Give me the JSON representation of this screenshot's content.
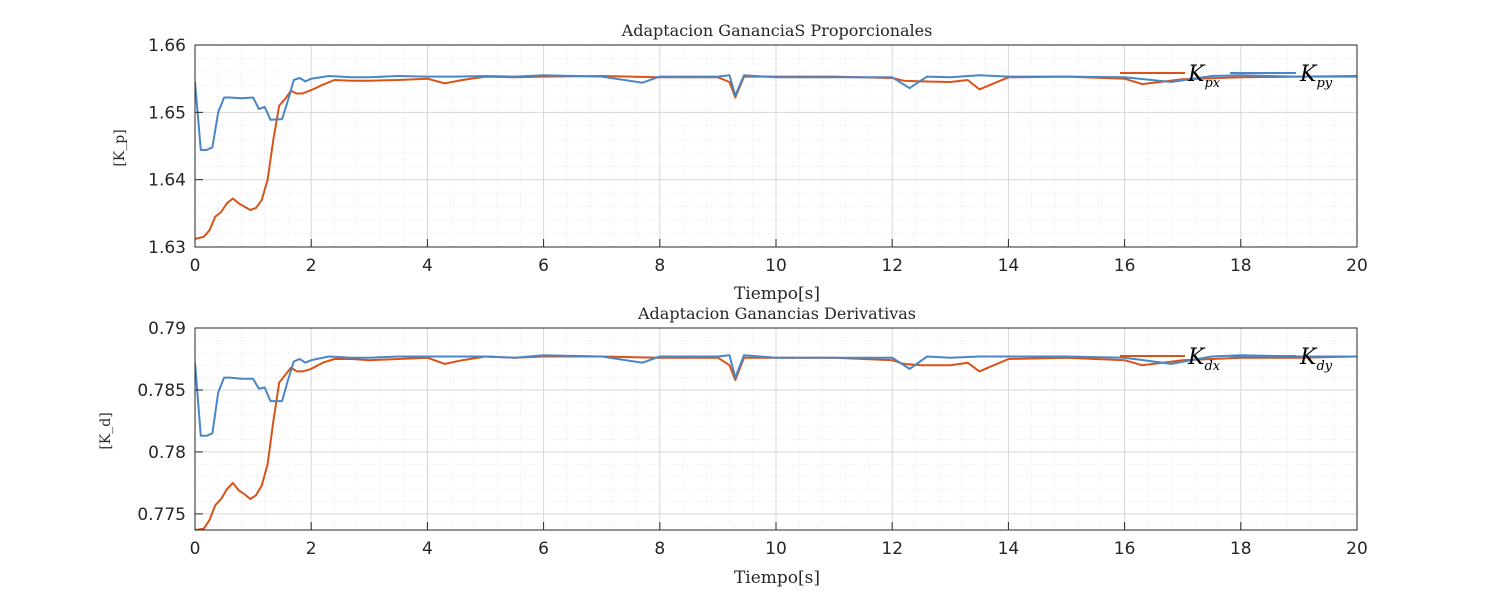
{
  "chart_data": [
    {
      "type": "line",
      "title": "Adaptacion GananciaS Proporcionales",
      "xlabel": "Tiempo[s]",
      "ylabel": "[K_p]",
      "xlim": [
        0,
        20
      ],
      "ylim": [
        1.63,
        1.66
      ],
      "xticks": [
        "0",
        "2",
        "4",
        "6",
        "8",
        "10",
        "12",
        "14",
        "16",
        "18",
        "20"
      ],
      "yticks": [
        "1.63",
        "1.64",
        "1.65",
        "1.66"
      ],
      "grid": true,
      "minor_grid": true,
      "legend_position": "top-right",
      "series": [
        {
          "name": "K_px",
          "legend_main": "K",
          "legend_sub": "px",
          "color": "#d95319",
          "x": [
            0,
            0.15,
            0.25,
            0.35,
            0.45,
            0.55,
            0.65,
            0.75,
            0.85,
            0.95,
            1.05,
            1.15,
            1.25,
            1.35,
            1.45,
            1.55,
            1.65,
            1.75,
            1.85,
            2.0,
            2.2,
            2.4,
            2.7,
            3.0,
            3.5,
            4.0,
            4.3,
            4.6,
            5.0,
            5.5,
            6.0,
            7.0,
            8.0,
            9.0,
            9.2,
            9.3,
            9.45,
            10.0,
            11.0,
            12.0,
            12.2,
            12.5,
            13.0,
            13.3,
            13.5,
            14.0,
            15.0,
            16.0,
            16.3,
            17.0,
            18.0,
            19.0,
            20.0
          ],
          "y": [
            1.6312,
            1.6315,
            1.6325,
            1.6345,
            1.6352,
            1.6365,
            1.6372,
            1.6365,
            1.636,
            1.6355,
            1.6358,
            1.637,
            1.64,
            1.646,
            1.651,
            1.652,
            1.6532,
            1.6528,
            1.6528,
            1.6533,
            1.6541,
            1.6548,
            1.6547,
            1.6547,
            1.6548,
            1.655,
            1.6543,
            1.6548,
            1.6553,
            1.6552,
            1.6553,
            1.6554,
            1.6552,
            1.6552,
            1.6545,
            1.6522,
            1.6553,
            1.6553,
            1.6553,
            1.6551,
            1.6547,
            1.6546,
            1.6545,
            1.6548,
            1.6534,
            1.6552,
            1.6553,
            1.655,
            1.6542,
            1.6549,
            1.6552,
            1.6553,
            1.6554
          ]
        },
        {
          "name": "K_py",
          "legend_main": "K",
          "legend_sub": "py",
          "color": "#4a86c5",
          "x": [
            0,
            0.1,
            0.2,
            0.3,
            0.4,
            0.5,
            0.6,
            0.8,
            1.0,
            1.1,
            1.2,
            1.3,
            1.5,
            1.6,
            1.7,
            1.8,
            1.9,
            2.0,
            2.3,
            2.7,
            3.0,
            3.5,
            4.0,
            4.5,
            5.0,
            5.5,
            6.0,
            7.0,
            7.7,
            8.0,
            9.0,
            9.2,
            9.3,
            9.45,
            10.0,
            11.0,
            12.0,
            12.3,
            12.6,
            13.0,
            13.5,
            14.0,
            15.0,
            16.0,
            16.8,
            17.5,
            18.0,
            19.0,
            20.0
          ],
          "y": [
            1.6545,
            1.6444,
            1.6444,
            1.6448,
            1.65,
            1.6522,
            1.6522,
            1.6521,
            1.6522,
            1.6505,
            1.6508,
            1.6489,
            1.649,
            1.6518,
            1.6548,
            1.6551,
            1.6546,
            1.655,
            1.6554,
            1.6552,
            1.6552,
            1.6554,
            1.6553,
            1.6553,
            1.6554,
            1.6553,
            1.6555,
            1.6553,
            1.6544,
            1.6553,
            1.6553,
            1.6555,
            1.6525,
            1.6555,
            1.6552,
            1.6552,
            1.6552,
            1.6536,
            1.6553,
            1.6552,
            1.6555,
            1.6553,
            1.6553,
            1.6552,
            1.6545,
            1.6554,
            1.6555,
            1.6553,
            1.6553
          ]
        }
      ]
    },
    {
      "type": "line",
      "title": "Adaptacion Ganancias Derivativas",
      "xlabel": "Tiempo[s]",
      "ylabel": "[K_d]",
      "xlim": [
        0,
        20
      ],
      "ylim": [
        0.7737,
        0.79
      ],
      "xticks": [
        "0",
        "2",
        "4",
        "6",
        "8",
        "10",
        "12",
        "14",
        "16",
        "18",
        "20"
      ],
      "yticks": [
        "0.775",
        "0.78",
        "0.785",
        "0.79"
      ],
      "grid": true,
      "minor_grid": true,
      "legend_position": "top-right",
      "series": [
        {
          "name": "K_dx",
          "legend_main": "K",
          "legend_sub": "dx",
          "color": "#d95319",
          "x": [
            0,
            0.15,
            0.25,
            0.35,
            0.45,
            0.55,
            0.65,
            0.75,
            0.85,
            0.95,
            1.05,
            1.15,
            1.25,
            1.35,
            1.45,
            1.55,
            1.65,
            1.75,
            1.85,
            2.0,
            2.2,
            2.4,
            2.7,
            3.0,
            3.5,
            4.0,
            4.3,
            4.6,
            5.0,
            5.5,
            6.0,
            7.0,
            8.0,
            9.0,
            9.2,
            9.3,
            9.45,
            10.0,
            11.0,
            12.0,
            12.2,
            12.5,
            13.0,
            13.3,
            13.5,
            14.0,
            15.0,
            16.0,
            16.3,
            17.0,
            18.0,
            19.0,
            20.0
          ],
          "y": [
            0.7737,
            0.7738,
            0.7745,
            0.7757,
            0.7762,
            0.777,
            0.7775,
            0.7769,
            0.7766,
            0.7762,
            0.7765,
            0.7773,
            0.779,
            0.7825,
            0.7856,
            0.7862,
            0.7868,
            0.7865,
            0.7865,
            0.7867,
            0.7872,
            0.7875,
            0.7875,
            0.7874,
            0.7875,
            0.7876,
            0.7871,
            0.7874,
            0.7877,
            0.7876,
            0.7877,
            0.7877,
            0.7876,
            0.7876,
            0.787,
            0.7858,
            0.7876,
            0.7876,
            0.7876,
            0.7874,
            0.7871,
            0.787,
            0.787,
            0.7872,
            0.7865,
            0.7875,
            0.7876,
            0.7874,
            0.787,
            0.7874,
            0.7876,
            0.7876,
            0.7877
          ]
        },
        {
          "name": "K_dy",
          "legend_main": "K",
          "legend_sub": "dy",
          "color": "#4a86c5",
          "x": [
            0,
            0.1,
            0.2,
            0.3,
            0.4,
            0.5,
            0.6,
            0.8,
            1.0,
            1.1,
            1.2,
            1.3,
            1.5,
            1.6,
            1.7,
            1.8,
            1.9,
            2.0,
            2.3,
            2.7,
            3.0,
            3.5,
            4.0,
            4.5,
            5.0,
            5.5,
            6.0,
            7.0,
            7.7,
            8.0,
            9.0,
            9.2,
            9.3,
            9.45,
            10.0,
            11.0,
            12.0,
            12.3,
            12.6,
            13.0,
            13.5,
            14.0,
            15.0,
            16.0,
            16.8,
            17.5,
            18.0,
            19.0,
            20.0
          ],
          "y": [
            0.7872,
            0.7813,
            0.7813,
            0.7815,
            0.7848,
            0.786,
            0.786,
            0.7859,
            0.7859,
            0.7851,
            0.7852,
            0.7841,
            0.7841,
            0.7858,
            0.7873,
            0.7875,
            0.7872,
            0.7874,
            0.7877,
            0.7876,
            0.7876,
            0.7877,
            0.7877,
            0.7877,
            0.7877,
            0.7876,
            0.7878,
            0.7877,
            0.7872,
            0.7877,
            0.7877,
            0.7878,
            0.786,
            0.7878,
            0.7876,
            0.7876,
            0.7876,
            0.7867,
            0.7877,
            0.7876,
            0.7877,
            0.7877,
            0.7877,
            0.7876,
            0.7871,
            0.7877,
            0.7878,
            0.7877,
            0.7877
          ]
        }
      ]
    }
  ]
}
